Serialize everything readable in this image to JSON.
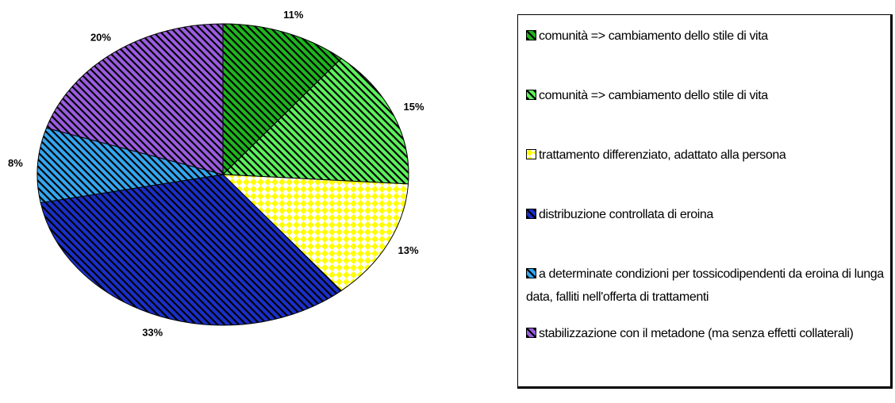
{
  "chart_data": {
    "type": "pie",
    "categories": [
      "comunità => cambiamento dello stile di vita",
      "comunità => cambiamento dello stile di vita",
      "trattamento differenziato, adattato alla persona",
      "distribuzione controllata di eroina",
      "a determinate condizioni per tossicodipendenti da eroina di lunga data, falliti nell'offerta di trattamenti",
      "stabilizzazione con il metadone (ma senza effetti collaterali)"
    ],
    "values": [
      11,
      15,
      13,
      33,
      8,
      20
    ],
    "value_labels": [
      "11%",
      "15%",
      "13%",
      "33%",
      "8%",
      "20%"
    ],
    "colors": [
      "#1fb51f",
      "#5cf05c",
      "#ffff00",
      "#1a2fc8",
      "#33a6f0",
      "#9a5ce0"
    ],
    "patterns": [
      "stripes",
      "stripes",
      "diamonds",
      "stripes",
      "stripes",
      "stripes"
    ],
    "legend": "right"
  }
}
